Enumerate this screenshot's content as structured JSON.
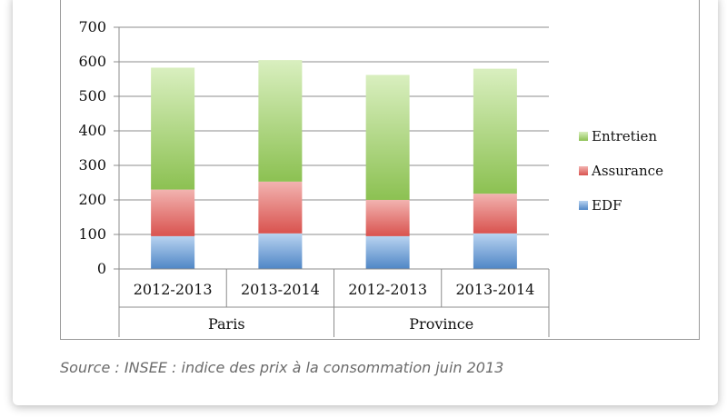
{
  "chart_data": {
    "type": "bar",
    "stacked": true,
    "categories": [
      "2012-2013",
      "2013-2014",
      "2012-2013",
      "2013-2014"
    ],
    "groups": [
      {
        "label": "Paris",
        "categories": [
          0,
          1
        ]
      },
      {
        "label": "Province",
        "categories": [
          2,
          3
        ]
      }
    ],
    "series": [
      {
        "name": "EDF",
        "values": [
          95,
          103,
          95,
          103
        ],
        "color": "#4f86c6"
      },
      {
        "name": "Assurance",
        "values": [
          135,
          150,
          105,
          115
        ],
        "color": "#d9534f"
      },
      {
        "name": "Entretien",
        "values": [
          353,
          352,
          362,
          362
        ],
        "color": "#8cc152"
      }
    ],
    "yticks": [
      0,
      100,
      200,
      300,
      400,
      500,
      600,
      700
    ],
    "ylim": [
      0,
      700
    ],
    "grid": true,
    "legend": "right"
  },
  "caption": "Source : INSEE : indice des prix à la consommation juin 2013"
}
